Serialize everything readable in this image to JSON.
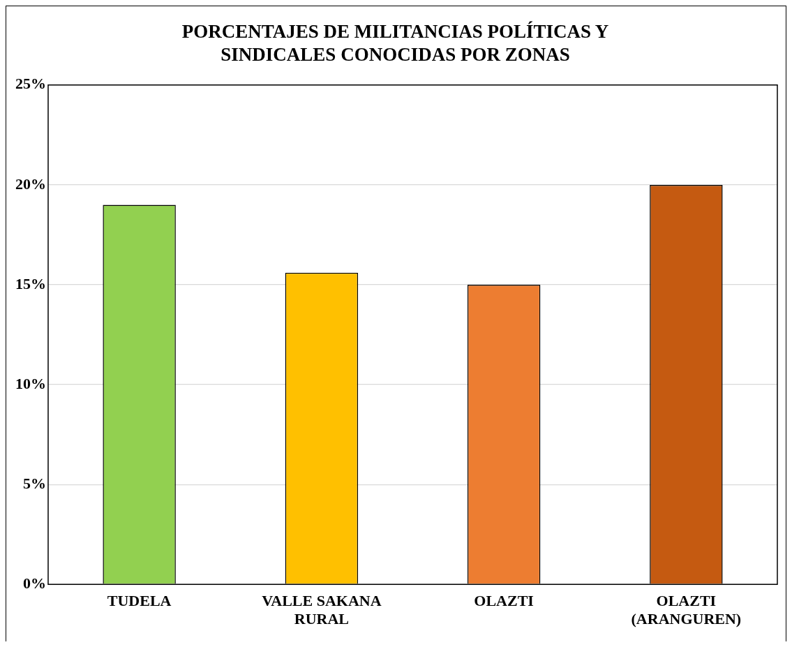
{
  "chart_data": {
    "type": "bar",
    "title": "PORCENTAJES DE MILITANCIAS POLÍTICAS Y SINDICALES CONOCIDAS POR ZONAS",
    "categories": [
      "TUDELA",
      "VALLE SAKANA RURAL",
      "OLAZTI",
      "OLAZTI (ARANGUREN)"
    ],
    "values": [
      19,
      15.6,
      15,
      20
    ],
    "colors": [
      "#92d050",
      "#ffc000",
      "#ed7d31",
      "#c55a11"
    ],
    "ylim": [
      0,
      25
    ],
    "yticks": [
      {
        "value": 0,
        "label": "0%"
      },
      {
        "value": 5,
        "label": "5%"
      },
      {
        "value": 10,
        "label": "10%"
      },
      {
        "value": 15,
        "label": "15%"
      },
      {
        "value": 20,
        "label": "20%"
      },
      {
        "value": 25,
        "label": "25%"
      }
    ],
    "grid": "y",
    "legend": false
  }
}
